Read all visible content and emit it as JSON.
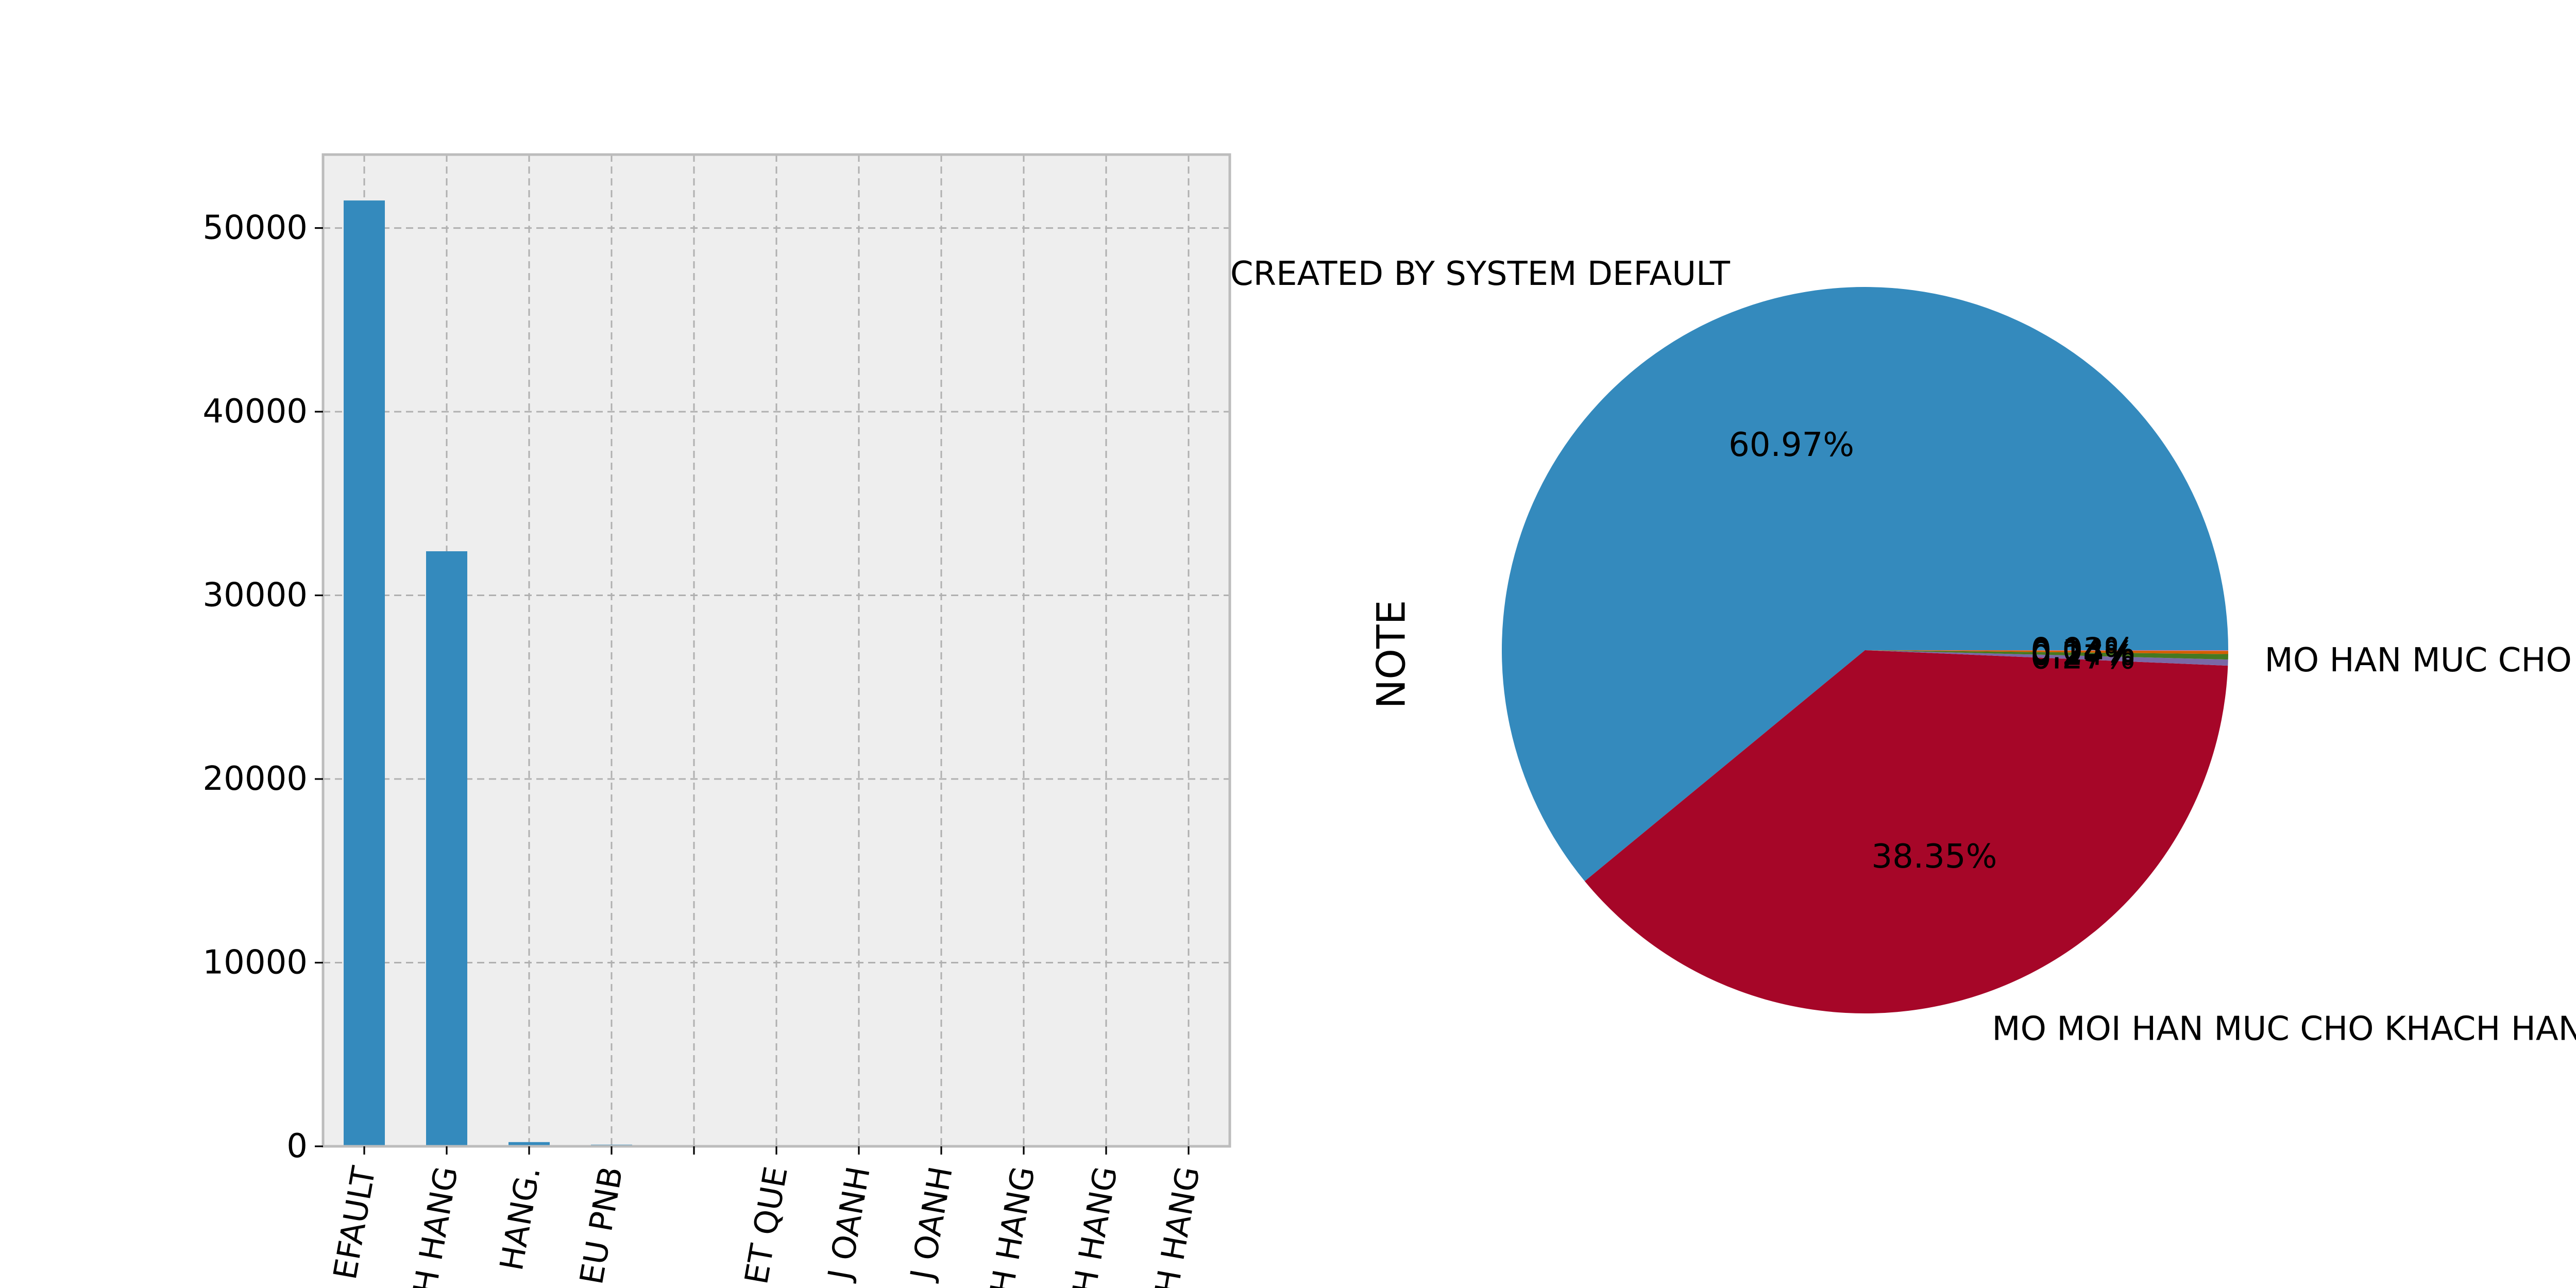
{
  "colors": {
    "bar": "#348abd",
    "axes_bg": "#eeeeee",
    "pie": [
      "#348abd",
      "#a60628",
      "#7a68a6",
      "#467821",
      "#d55e00",
      "#cc79a7",
      "#56b4e9",
      "#009e73",
      "#f0e442",
      "#0072b2"
    ]
  },
  "chart_data": [
    {
      "type": "bar",
      "categories": [
        "EFAULT",
        "H HANG",
        "HANG.",
        "EU PNB",
        "",
        "ET QUE",
        "J OANH",
        "J OANH",
        "H HANG",
        "H HANG",
        "H HANG"
      ],
      "values": [
        51500,
        32400,
        230,
        90,
        12,
        10,
        8,
        6,
        5,
        4,
        3
      ],
      "ylim": [
        0,
        54000
      ],
      "yticks": [
        0,
        10000,
        20000,
        30000,
        40000,
        50000
      ],
      "ytick_labels": [
        "0",
        "10000",
        "20000",
        "30000",
        "40000",
        "50000"
      ],
      "grid": true
    },
    {
      "type": "pie",
      "ylabel": "NOTE",
      "slices": [
        {
          "label": "CREATED BY SYSTEM DEFAULT",
          "percent": 60.97,
          "pct_label": "60.97%"
        },
        {
          "label": "MO MOI HAN MUC CHO KHACH HANG",
          "percent": 38.35,
          "pct_label": "38.35%"
        },
        {
          "label": "",
          "percent": 0.27,
          "pct_label": "0.27%"
        },
        {
          "label": "",
          "percent": 0.24,
          "pct_label": "0.24%"
        },
        {
          "label": "",
          "percent": 0.14,
          "pct_label": "0.14%"
        },
        {
          "label": "",
          "percent": 0.03,
          "pct_label": "0.03%"
        }
      ],
      "overlapping_label_text": "MO HAN MUC CHO"
    }
  ]
}
